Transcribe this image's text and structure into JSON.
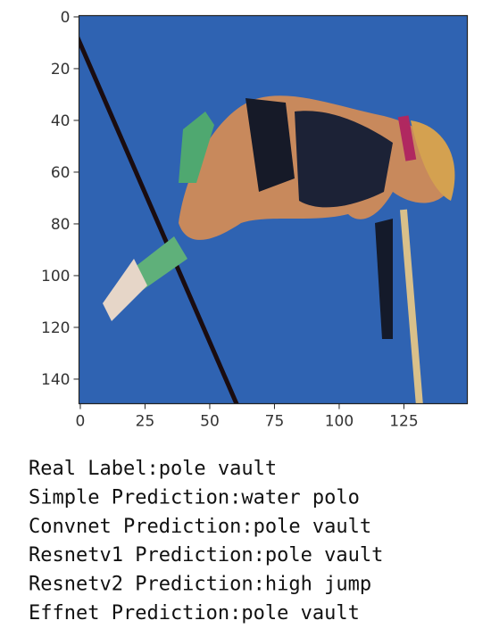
{
  "chart_data": {
    "type": "image",
    "xlim": [
      -0.5,
      149.5
    ],
    "ylim": [
      149.5,
      -0.5
    ],
    "xticks": [
      0,
      25,
      50,
      75,
      100,
      125
    ],
    "yticks": [
      0,
      20,
      40,
      60,
      80,
      100,
      120,
      140
    ]
  },
  "output": {
    "lines": [
      "Real Label:pole vault",
      "Simple Prediction:water polo",
      "Convnet Prediction:pole vault",
      "Resnetv1 Prediction:pole vault",
      "Resnetv2 Prediction:high jump",
      "Effnet Prediction:pole vault"
    ]
  }
}
